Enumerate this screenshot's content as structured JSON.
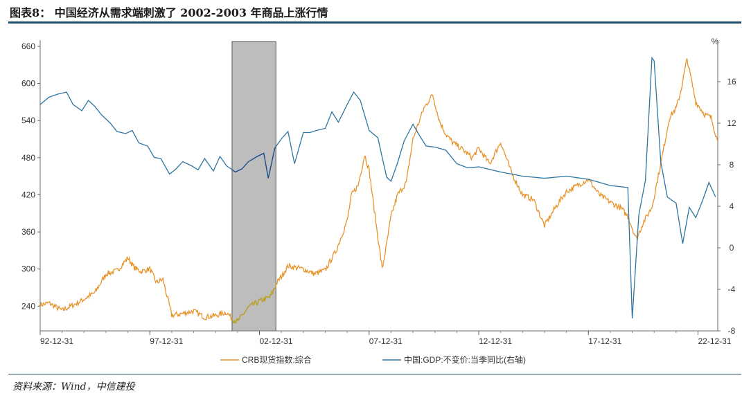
{
  "header": {
    "title": "图表8： 中国经济从需求端刺激了 2002-2003 年商品上涨行情"
  },
  "footer": {
    "source": "资料来源：Wind，中信建投"
  },
  "colors": {
    "crb": "#E8922A",
    "gdp": "#2E75A0",
    "shade": "#BDBDBD",
    "crb_in_shade": "#B8A020",
    "gdp_in_shade": "#1F4E8C",
    "rule": "#1F4E6E"
  },
  "chart_data": {
    "type": "line",
    "title": "中国经济从需求端刺激了 2002-2003 年商品上涨行情",
    "x_tick_labels": [
      "92-12-31",
      "97-12-31",
      "02-12-31",
      "07-12-31",
      "12-12-31",
      "17-12-31",
      "22-12-31"
    ],
    "x_range": [
      1993.0,
      2023.9
    ],
    "y_left": {
      "label": "",
      "range": [
        200,
        670
      ],
      "ticks": [
        240,
        300,
        360,
        420,
        480,
        540,
        600,
        660
      ]
    },
    "y_right": {
      "label": "%",
      "range": [
        -8,
        20
      ],
      "ticks": [
        -8,
        -4,
        0,
        4,
        8,
        12,
        16
      ]
    },
    "shaded_region": {
      "from": 2001.75,
      "to": 2003.75,
      "note": "2002-2003"
    },
    "series": [
      {
        "name": "CRB现货指数:综合",
        "axis": "left",
        "x": [
          1993.0,
          1993.4,
          1994.0,
          1994.8,
          1995.5,
          1996.0,
          1996.5,
          1997.0,
          1997.3,
          1997.6,
          1998.0,
          1998.3,
          1998.6,
          1999.0,
          1999.5,
          2000.0,
          2000.5,
          2001.0,
          2001.5,
          2001.8,
          2002.0,
          2002.5,
          2003.0,
          2003.5,
          2003.8,
          2004.0,
          2004.3,
          2005.0,
          2005.5,
          2006.0,
          2006.5,
          2007.0,
          2007.2,
          2007.5,
          2007.8,
          2008.0,
          2008.3,
          2008.6,
          2008.8,
          2009.0,
          2009.3,
          2009.7,
          2010.0,
          2010.5,
          2010.9,
          2011.2,
          2011.5,
          2011.8,
          2012.2,
          2012.7,
          2013.0,
          2013.5,
          2014.0,
          2014.5,
          2015.0,
          2015.5,
          2016.0,
          2016.5,
          2017.0,
          2017.5,
          2018.0,
          2018.5,
          2019.0,
          2019.5,
          2019.8,
          2020.2,
          2020.5,
          2020.9,
          2021.3,
          2021.7,
          2022.0,
          2022.2,
          2022.5,
          2022.9,
          2023.3,
          2023.6,
          2023.9
        ],
        "values": [
          242,
          245,
          233,
          247,
          262,
          292,
          297,
          318,
          302,
          296,
          300,
          278,
          283,
          225,
          228,
          232,
          222,
          225,
          230,
          218,
          215,
          238,
          248,
          255,
          278,
          288,
          305,
          300,
          292,
          298,
          330,
          378,
          420,
          435,
          485,
          460,
          378,
          300,
          340,
          385,
          420,
          440,
          510,
          560,
          582,
          540,
          518,
          505,
          495,
          480,
          495,
          470,
          505,
          455,
          420,
          412,
          370,
          400,
          425,
          435,
          445,
          420,
          408,
          398,
          385,
          348,
          375,
          400,
          470,
          545,
          560,
          585,
          640,
          570,
          550,
          545,
          505
        ]
      },
      {
        "name": "中国:GDP:不变价:当季同比(右轴)",
        "axis": "right",
        "x": [
          1993.0,
          1993.4,
          1993.8,
          1994.2,
          1994.5,
          1994.9,
          1995.2,
          1995.5,
          1995.8,
          1996.2,
          1996.5,
          1996.9,
          1997.2,
          1997.5,
          1997.9,
          1998.2,
          1998.5,
          1998.9,
          1999.2,
          1999.5,
          1999.9,
          2000.2,
          2000.5,
          2000.9,
          2001.2,
          2001.5,
          2001.9,
          2002.2,
          2002.5,
          2002.9,
          2003.2,
          2003.4,
          2003.7,
          2004.0,
          2004.3,
          2004.6,
          2005.0,
          2005.3,
          2005.6,
          2006.0,
          2006.3,
          2006.6,
          2007.0,
          2007.3,
          2007.6,
          2008.0,
          2008.4,
          2008.8,
          2009.0,
          2009.3,
          2009.6,
          2010.0,
          2010.3,
          2010.6,
          2011.0,
          2011.5,
          2012.0,
          2012.5,
          2013.0,
          2014.0,
          2015.0,
          2016.0,
          2017.0,
          2018.0,
          2019.0,
          2019.8,
          2020.0,
          2020.3,
          2020.6,
          2020.9,
          2021.0,
          2021.3,
          2021.6,
          2022.0,
          2022.3,
          2022.6,
          2022.9,
          2023.2,
          2023.5,
          2023.8
        ],
        "values": [
          13.8,
          14.5,
          14.8,
          15.0,
          13.8,
          13.2,
          14.2,
          13.6,
          12.8,
          12.0,
          11.2,
          11.0,
          11.3,
          10.1,
          9.8,
          8.7,
          8.6,
          7.1,
          7.6,
          8.3,
          7.9,
          7.5,
          8.6,
          7.4,
          8.8,
          7.9,
          7.3,
          7.6,
          8.3,
          8.8,
          9.1,
          6.7,
          9.6,
          10.5,
          11.2,
          8.1,
          11.1,
          11.1,
          11.3,
          11.5,
          13.1,
          12.1,
          13.8,
          15.0,
          14.2,
          11.3,
          10.6,
          6.8,
          6.4,
          8.2,
          10.3,
          11.9,
          10.8,
          9.8,
          9.7,
          9.4,
          8.1,
          7.7,
          7.8,
          7.3,
          6.9,
          6.7,
          6.9,
          6.6,
          6.0,
          5.8,
          -6.8,
          3.2,
          6.5,
          18.3,
          18.0,
          8.3,
          4.9,
          4.3,
          0.4,
          3.9,
          2.9,
          4.5,
          6.3,
          4.9
        ]
      }
    ],
    "legend": [
      "CRB现货指数:综合",
      "中国:GDP:不变价:当季同比(右轴)"
    ],
    "legend_position": "bottom"
  }
}
